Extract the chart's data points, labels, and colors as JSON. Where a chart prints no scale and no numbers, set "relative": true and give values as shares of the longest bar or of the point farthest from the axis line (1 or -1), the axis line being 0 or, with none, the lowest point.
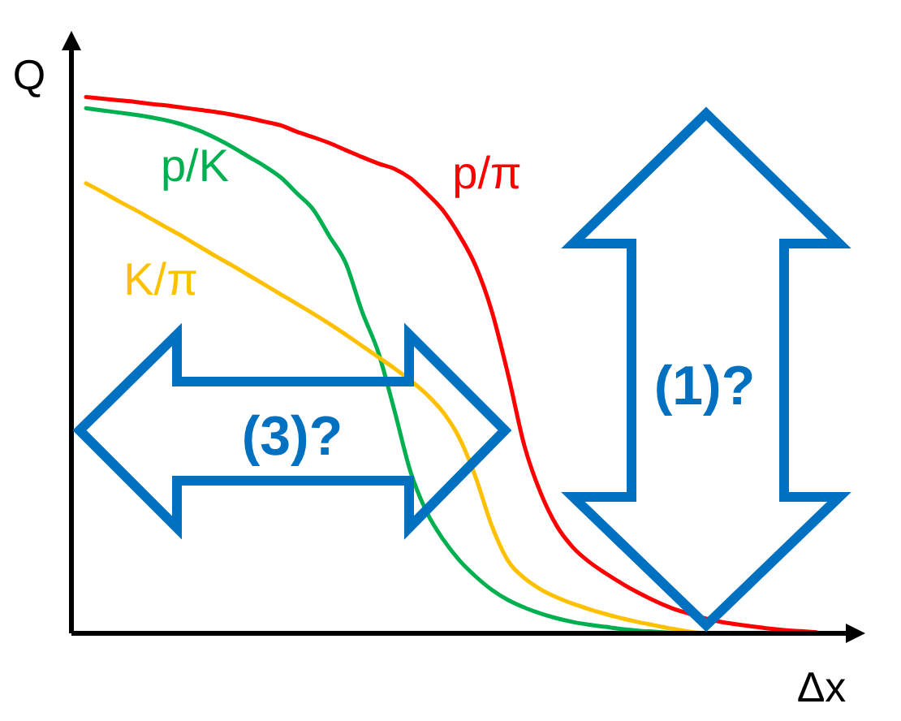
{
  "chart_data": {
    "type": "line",
    "relative": true,
    "xlabel": "Δx",
    "ylabel": "Q",
    "marker": "none",
    "categories": [
      null,
      null,
      null,
      null,
      null,
      null,
      null,
      null,
      null,
      null,
      null,
      null,
      null,
      null,
      null,
      null,
      null,
      null,
      null,
      null,
      null,
      null,
      null,
      null,
      null,
      null,
      null,
      null,
      null,
      null,
      null,
      null,
      null,
      null,
      null,
      null,
      null,
      null,
      null,
      null,
      null,
      null,
      null,
      null,
      null,
      null
    ],
    "series": [
      {
        "name": "p/π",
        "color": "#ff0000",
        "values": [
          1.0,
          0.997,
          0.994,
          0.991,
          0.987,
          0.984,
          0.98,
          0.976,
          0.972,
          0.967,
          0.961,
          0.954,
          0.947,
          0.935,
          0.925,
          0.914,
          0.901,
          0.888,
          0.876,
          0.866,
          0.848,
          0.82,
          0.788,
          0.742,
          0.685,
          0.6,
          0.482,
          0.35,
          0.262,
          0.2,
          0.16,
          0.133,
          0.112,
          0.093,
          0.076,
          0.061,
          0.048,
          0.038,
          0.029,
          0.022,
          0.017,
          0.013,
          0.009,
          0.006,
          0.004,
          0.002
        ]
      },
      {
        "name": "p/K",
        "color": "#00b050",
        "values": [
          0.979,
          0.975,
          0.971,
          0.967,
          0.962,
          0.956,
          0.948,
          0.937,
          0.923,
          0.907,
          0.889,
          0.871,
          0.85,
          0.82,
          0.79,
          0.74,
          0.69,
          0.6,
          0.524,
          0.415,
          0.3,
          0.225,
          0.175,
          0.136,
          0.106,
          0.081,
          0.062,
          0.048,
          0.037,
          0.028,
          0.021,
          0.016,
          0.012,
          0.008,
          0.005,
          0.003,
          0.001,
          0.0,
          null,
          null,
          null,
          null,
          null,
          null,
          null,
          null
        ]
      },
      {
        "name": "K/π",
        "color": "#ffc000",
        "values": [
          0.839,
          0.823,
          0.806,
          0.79,
          0.773,
          0.756,
          0.739,
          0.721,
          0.703,
          0.686,
          0.668,
          0.65,
          0.632,
          0.614,
          0.596,
          0.577,
          0.557,
          0.536,
          0.515,
          0.494,
          0.471,
          0.445,
          0.412,
          0.364,
          0.291,
          0.2,
          0.135,
          0.103,
          0.082,
          0.067,
          0.055,
          0.045,
          0.036,
          0.028,
          0.021,
          0.015,
          0.009,
          0.004,
          0.0,
          null,
          null,
          null,
          null,
          null,
          null,
          null
        ]
      }
    ],
    "annotations": [
      "(1)?",
      "(3)?"
    ]
  }
}
